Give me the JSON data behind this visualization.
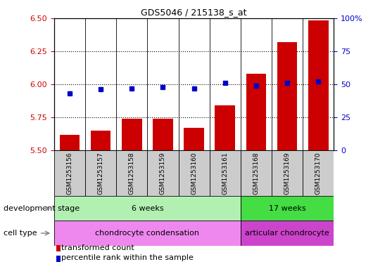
{
  "title": "GDS5046 / 215138_s_at",
  "samples": [
    "GSM1253156",
    "GSM1253157",
    "GSM1253158",
    "GSM1253159",
    "GSM1253160",
    "GSM1253161",
    "GSM1253168",
    "GSM1253169",
    "GSM1253170"
  ],
  "transformed_count": [
    5.62,
    5.65,
    5.74,
    5.74,
    5.67,
    5.84,
    6.08,
    6.32,
    6.48
  ],
  "percentile_rank": [
    43,
    46,
    47,
    48,
    47,
    51,
    49,
    51,
    52
  ],
  "ylim_left": [
    5.5,
    6.5
  ],
  "ylim_right": [
    0,
    100
  ],
  "yticks_left": [
    5.5,
    5.75,
    6.0,
    6.25,
    6.5
  ],
  "yticks_right": [
    0,
    25,
    50,
    75,
    100
  ],
  "bar_color": "#cc0000",
  "dot_color": "#0000cc",
  "bar_bottom": 5.5,
  "dev_stage_groups": [
    {
      "label": "6 weeks",
      "start": 0,
      "end": 6,
      "color": "#b2f0b2"
    },
    {
      "label": "17 weeks",
      "start": 6,
      "end": 9,
      "color": "#44dd44"
    }
  ],
  "cell_type_groups": [
    {
      "label": "chondrocyte condensation",
      "start": 0,
      "end": 6,
      "color": "#ee88ee"
    },
    {
      "label": "articular chondrocyte",
      "start": 6,
      "end": 9,
      "color": "#cc44cc"
    }
  ],
  "dev_stage_label": "development stage",
  "cell_type_label": "cell type",
  "legend_bar_label": "transformed count",
  "legend_dot_label": "percentile rank within the sample",
  "axis_label_color_left": "#cc0000",
  "axis_label_color_right": "#0000cc",
  "sample_box_color": "#cccccc",
  "plot_bg_color": "#ffffff"
}
